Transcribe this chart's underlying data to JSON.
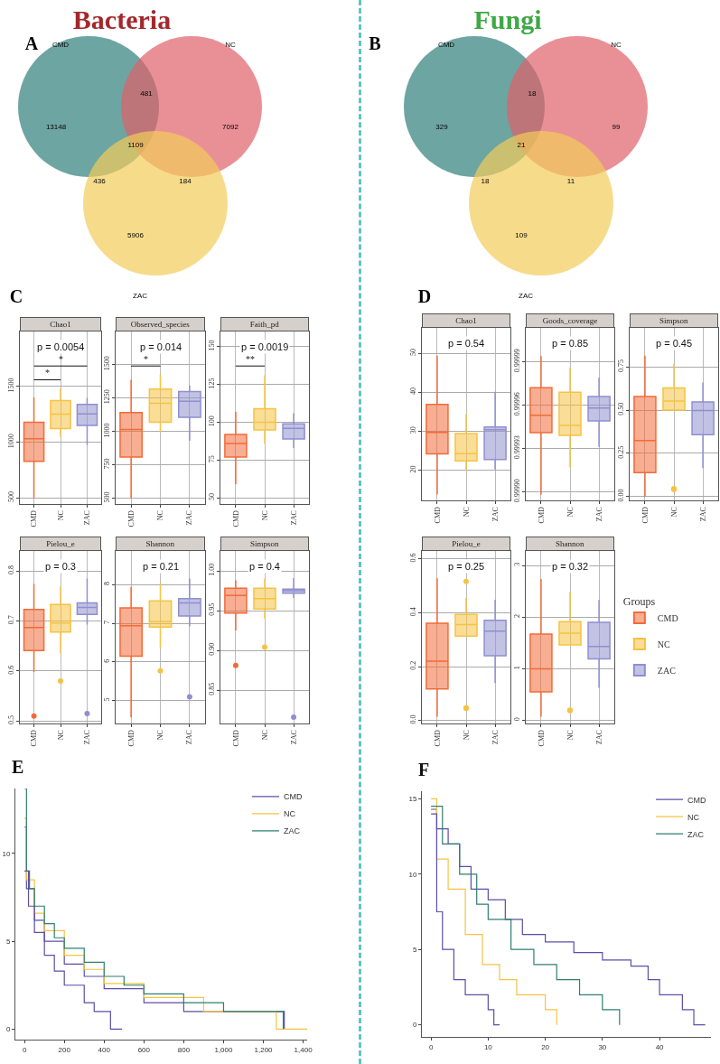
{
  "chart_data": [
    {
      "type": "other",
      "title": "Bacteria",
      "categories": [
        "CMD",
        "NC",
        "ZAC"
      ],
      "colors": [
        "#2f7f7a",
        "#e0616a",
        "#f2cc5a"
      ],
      "annotations": [
        "A",
        "13148",
        "7092",
        "5906",
        "481",
        "436",
        "184",
        "1109",
        "C"
      ]
    },
    {
      "type": "other",
      "title": "Fungi",
      "categories": [
        "CMD",
        "NC",
        "ZAC"
      ],
      "colors": [
        "#2f7f7a",
        "#e0616a",
        "#f2cc5a"
      ],
      "annotations": [
        "B",
        "329",
        "99",
        "109",
        "18",
        "18",
        "11",
        "21",
        "D"
      ]
    },
    {
      "type": "box",
      "title": "Chao1",
      "categories": [
        "CMD",
        "NC",
        "ZAC"
      ],
      "colors": [
        "#f26b38",
        "#f5c342",
        "#8f8fd0"
      ],
      "ylim": [
        445,
        1990
      ],
      "yticks": [
        500,
        1000,
        1500
      ],
      "grid": true,
      "annotations": [
        "p = 0.0054",
        "*",
        "*"
      ],
      "boxes": [
        {
          "low": 500,
          "q1": 827,
          "median": 1030,
          "q3": 1178,
          "high": 1400
        },
        {
          "low": 1045,
          "q1": 1121,
          "median": 1250,
          "q3": 1371,
          "high": 1483
        },
        {
          "low": 975,
          "q1": 1149,
          "median": 1252,
          "q3": 1337,
          "high": 1396
        }
      ]
    },
    {
      "type": "box",
      "title": "Observed_species",
      "categories": [
        "CMD",
        "NC",
        "ZAC"
      ],
      "colors": [
        "#f26b38",
        "#f5c342",
        "#8f8fd0"
      ],
      "ylim": [
        458,
        1746
      ],
      "yticks": [
        500,
        750,
        1000,
        1250,
        1500
      ],
      "grid": true,
      "annotations": [
        "p = 0.014",
        "*"
      ],
      "boxes": [
        {
          "low": 500,
          "q1": 809,
          "median": 1015,
          "q3": 1141,
          "high": 1386
        },
        {
          "low": 994,
          "q1": 1068,
          "median": 1210,
          "q3": 1316,
          "high": 1424
        },
        {
          "low": 930,
          "q1": 1106,
          "median": 1225,
          "q3": 1297,
          "high": 1343
        }
      ]
    },
    {
      "type": "box",
      "title": "Faith_pd",
      "categories": [
        "CMD",
        "NC",
        "ZAC"
      ],
      "colors": [
        "#f26b38",
        "#f5c342",
        "#8f8fd0"
      ],
      "ylim": [
        46,
        160
      ],
      "yticks": [
        50,
        75,
        100,
        125,
        150
      ],
      "grid": true,
      "annotations": [
        "p = 0.0019",
        "**"
      ],
      "boxes": [
        {
          "low": 59,
          "q1": 77,
          "median": 86,
          "q3": 92,
          "high": 107
        },
        {
          "low": 86,
          "q1": 95,
          "median": 100,
          "q3": 109,
          "high": 131
        },
        {
          "low": 83,
          "q1": 89,
          "median": 96,
          "q3": 99,
          "high": 106
        }
      ]
    },
    {
      "type": "box",
      "title": "Pielou_e",
      "categories": [
        "CMD",
        "NC",
        "ZAC"
      ],
      "colors": [
        "#f26b38",
        "#f5c342",
        "#8f8fd0"
      ],
      "ylim": [
        0.495,
        0.84
      ],
      "yticks": [
        {
          "value": 0.5,
          "label": "0.5"
        },
        0.6,
        0.7,
        0.8
      ],
      "grid": true,
      "annotations": [
        "p = 0.3"
      ],
      "boxes": [
        {
          "low": 0.598,
          "q1": 0.641,
          "median": 0.687,
          "q3": 0.723,
          "high": 0.774,
          "outliers": [
            0.51
          ]
        },
        {
          "low": 0.636,
          "q1": 0.678,
          "median": 0.696,
          "q3": 0.733,
          "high": 0.769,
          "outliers": [
            0.58
          ]
        },
        {
          "low": 0.693,
          "q1": 0.713,
          "median": 0.727,
          "q3": 0.736,
          "high": 0.785,
          "outliers": [
            0.515
          ]
        }
      ]
    },
    {
      "type": "box",
      "title": "Shannon",
      "categories": [
        "CMD",
        "NC",
        "ZAC"
      ],
      "colors": [
        "#f26b38",
        "#f5c342",
        "#8f8fd0"
      ],
      "ylim": [
        4.41,
        8.87
      ],
      "yticks": [
        5,
        6,
        7,
        8
      ],
      "grid": true,
      "annotations": [
        "p = 0.21"
      ],
      "boxes": [
        {
          "low": 4.57,
          "q1": 6.15,
          "median": 6.94,
          "q3": 7.4,
          "high": 7.94
        },
        {
          "low": 6.38,
          "q1": 6.9,
          "median": 7.04,
          "q3": 7.58,
          "high": 8.04,
          "outliers": [
            5.77
          ]
        },
        {
          "low": 6.92,
          "q1": 7.19,
          "median": 7.53,
          "q3": 7.64,
          "high": 8.16,
          "outliers": [
            5.1
          ]
        }
      ]
    },
    {
      "type": "box",
      "title": "Simpson",
      "categories": [
        "CMD",
        "NC",
        "ZAC"
      ],
      "colors": [
        "#f26b38",
        "#f5c342",
        "#8f8fd0"
      ],
      "ylim": [
        0.808,
        1.025
      ],
      "yticks": [
        0.85,
        {
          "value": 0.9,
          "label": "0.90"
        },
        0.95,
        {
          "value": 1,
          "label": "1.00"
        }
      ],
      "grid": true,
      "annotations": [
        "p = 0.4"
      ],
      "boxes": [
        {
          "low": 0.925,
          "q1": 0.947,
          "median": 0.969,
          "q3": 0.978,
          "high": 0.988,
          "outliers": [
            0.881
          ]
        },
        {
          "low": 0.94,
          "q1": 0.952,
          "median": 0.965,
          "q3": 0.978,
          "high": 0.99,
          "outliers": [
            0.904
          ]
        },
        {
          "low": 0.966,
          "q1": 0.972,
          "median": 0.975,
          "q3": 0.977,
          "high": 0.991,
          "outliers": [
            0.816
          ]
        }
      ]
    },
    {
      "type": "box",
      "title": "Chao1",
      "categories": [
        "CMD",
        "NC",
        "ZAC"
      ],
      "colors": [
        "#f26b38",
        "#f5c342",
        "#8f8fd0"
      ],
      "ylim": [
        12.3,
        56.5
      ],
      "yticks": [
        20,
        30,
        40,
        50
      ],
      "grid": true,
      "annotations": [
        "p = 0.54"
      ],
      "boxes": [
        {
          "low": 13.8,
          "q1": 24.2,
          "median": 29.7,
          "q3": 36.9,
          "high": 49.4
        },
        {
          "low": 19.8,
          "q1": 22.4,
          "median": 24.3,
          "q3": 29.4,
          "high": 34.4
        },
        {
          "low": 20.2,
          "q1": 22.8,
          "median": 30.4,
          "q3": 31.1,
          "high": 40.1
        }
      ]
    },
    {
      "type": "box",
      "title": "Goods_coverage",
      "categories": [
        "CMD",
        "NC",
        "ZAC"
      ],
      "colors": [
        "#f26b38",
        "#f5c342",
        "#8f8fd0"
      ],
      "ylim": [
        0.999894,
        1.0000135
      ],
      "yticks": [
        {
          "value": 0.9999,
          "label": "0.99990"
        },
        0.99993,
        0.99996,
        0.99999
      ],
      "grid": true,
      "annotations": [
        "p = 0.85"
      ],
      "boxes": [
        {
          "low": 0.999898,
          "q1": 0.999941,
          "median": 0.999953,
          "q3": 0.999972,
          "high": 0.999994
        },
        {
          "low": 0.999917,
          "q1": 0.999939,
          "median": 0.999946,
          "q3": 0.999969,
          "high": 0.999986
        },
        {
          "low": 0.999931,
          "q1": 0.999949,
          "median": 0.999958,
          "q3": 0.999966,
          "high": 0.999979
        }
      ]
    },
    {
      "type": "box",
      "title": "Simpson",
      "categories": [
        "CMD",
        "NC",
        "ZAC"
      ],
      "colors": [
        "#f26b38",
        "#f5c342",
        "#8f8fd0"
      ],
      "ylim": [
        -0.022,
        0.975
      ],
      "yticks": [
        {
          "value": 0,
          "label": "0.00"
        },
        0.25,
        {
          "value": 0.5,
          "label": "0.50"
        },
        0.75
      ],
      "grid": true,
      "annotations": [
        "p = 0.45"
      ],
      "boxes": [
        {
          "low": 0.0,
          "q1": 0.139,
          "median": 0.324,
          "q3": 0.578,
          "high": 0.814
        },
        {
          "low": 0.5,
          "q1": 0.5,
          "median": 0.552,
          "q3": 0.628,
          "high": 0.767,
          "outliers": [
            0.046,
            0.04
          ]
        },
        {
          "low": 0.164,
          "q1": 0.358,
          "median": 0.497,
          "q3": 0.547,
          "high": 0.659
        }
      ]
    },
    {
      "type": "box",
      "title": "Pielou_e",
      "categories": [
        "CMD",
        "NC",
        "ZAC"
      ],
      "colors": [
        "#f26b38",
        "#f5c342",
        "#8f8fd0"
      ],
      "ylim": [
        -0.011,
        0.629
      ],
      "yticks": [
        {
          "value": 0,
          "label": "0.0"
        },
        0.2,
        0.4,
        0.6
      ],
      "grid": true,
      "annotations": [
        "p = 0.25"
      ],
      "boxes": [
        {
          "low": 0.014,
          "q1": 0.117,
          "median": 0.22,
          "q3": 0.361,
          "high": 0.528
        },
        {
          "low": 0.313,
          "q1": 0.313,
          "median": 0.356,
          "q3": 0.394,
          "high": 0.454,
          "outliers": [
            0.516,
            0.047,
            0.045
          ]
        },
        {
          "low": 0.139,
          "q1": 0.24,
          "median": 0.332,
          "q3": 0.372,
          "high": 0.448
        }
      ]
    },
    {
      "type": "box",
      "title": "Shannon",
      "categories": [
        "CMD",
        "NC",
        "ZAC"
      ],
      "ylim": [
        -0.06,
        3.28
      ],
      "yticks": [
        0,
        1,
        2,
        3
      ],
      "grid": true,
      "annotations": [
        "p = 0.32"
      ],
      "legend": "right",
      "legend_title": "Groups",
      "series": [
        {
          "name": "CMD",
          "color": "#f26b38",
          "boxes": [
            {
              "low": 0.07,
              "q1": 0.55,
              "median": 1.0,
              "q3": 1.67,
              "high": 2.74
            },
            null,
            null
          ]
        },
        {
          "name": "NC",
          "color": "#f5c342",
          "boxes": [
            null,
            {
              "low": 1.46,
              "q1": 1.46,
              "median": 1.69,
              "q3": 1.91,
              "high": 2.49,
              "outliers": [
                0.2,
                0.19
              ]
            },
            null
          ]
        },
        {
          "name": "ZAC",
          "color": "#8f8fd0",
          "boxes": [
            null,
            null,
            {
              "low": 0.63,
              "q1": 1.19,
              "median": 1.43,
              "q3": 1.9,
              "high": 2.33
            }
          ]
        }
      ]
    },
    {
      "type": "step",
      "annotations": [
        "E"
      ],
      "xlim": [
        -46,
        1420
      ],
      "xticks": [
        0,
        200,
        400,
        600,
        800,
        {
          "value": 1000,
          "label": "1,000"
        },
        {
          "value": 1200,
          "label": "1,200"
        },
        {
          "value": 1400,
          "label": "1,400"
        }
      ],
      "ylim": [
        -0.6,
        13.7
      ],
      "yticks": [
        0,
        5,
        10
      ],
      "legend": "top right",
      "series": [
        {
          "name": "CMD",
          "color": "#5b4ea8",
          "x": [
            0,
            10,
            50,
            100,
            200,
            300,
            400,
            600,
            800,
            1300,
            1305
          ],
          "values": [
            11.5,
            8,
            6.2,
            5,
            3.7,
            3,
            2.3,
            1.5,
            1,
            1,
            0
          ]
        },
        {
          "name": "NC",
          "color": "#f5c342",
          "x": [
            0,
            10,
            50,
            100,
            200,
            300,
            400,
            600,
            900,
            1265,
            1420
          ],
          "values": [
            12,
            8.5,
            6.6,
            5.6,
            4.2,
            3.4,
            2.6,
            1.8,
            1,
            0,
            0
          ]
        },
        {
          "name": "ZAC",
          "color": "#2f7f6f",
          "x": [
            0,
            10,
            25,
            50,
            100,
            150,
            200,
            300,
            400,
            500,
            600,
            800,
            1000,
            1300
          ],
          "values": [
            13.7,
            9,
            8,
            7,
            6,
            5.2,
            4.6,
            3.8,
            3,
            2.5,
            2,
            1.5,
            1,
            0
          ]
        },
        {
          "color": "#5b4ea8",
          "x": [
            0,
            20,
            50,
            100,
            150,
            200,
            300,
            350,
            432,
            490
          ],
          "values": [
            9,
            7,
            5.5,
            4.2,
            3.3,
            2.5,
            1.5,
            1,
            0,
            0
          ]
        }
      ]
    },
    {
      "type": "step",
      "annotations": [
        "F"
      ],
      "xlim": [
        -1.6,
        49
      ],
      "xticks": [
        0,
        10,
        20,
        30,
        40
      ],
      "ylim": [
        -0.8,
        15.5
      ],
      "yticks": [
        0,
        5,
        10,
        15
      ],
      "legend": "top right",
      "series": [
        {
          "name": "CMD",
          "color": "#5b4ea8",
          "x": [
            0,
            1,
            3,
            5,
            7,
            10,
            13,
            16,
            20,
            25,
            30,
            35,
            38,
            40,
            44,
            46,
            48
          ],
          "values": [
            14.3,
            13,
            12,
            10.5,
            9,
            8.3,
            7,
            6,
            5.5,
            4.8,
            4.3,
            3.9,
            3,
            2,
            1,
            0,
            0
          ]
        },
        {
          "name": "NC",
          "color": "#f5c342",
          "x": [
            0,
            1,
            3,
            6,
            9,
            12,
            15,
            20,
            22
          ],
          "values": [
            15,
            11,
            9,
            6,
            4,
            3,
            2,
            1,
            0
          ]
        },
        {
          "name": "ZAC",
          "color": "#2f7f6f",
          "x": [
            0,
            2,
            5,
            8,
            10,
            14,
            18,
            22,
            26,
            30,
            33
          ],
          "values": [
            14.5,
            12,
            10,
            8,
            7,
            5,
            4,
            3,
            2,
            1,
            0
          ]
        },
        {
          "color": "#5b4ea8",
          "x": [
            0,
            1,
            2,
            4,
            6,
            10,
            11,
            12
          ],
          "values": [
            14,
            7.5,
            5,
            3,
            2,
            1,
            0,
            0
          ]
        }
      ]
    }
  ]
}
